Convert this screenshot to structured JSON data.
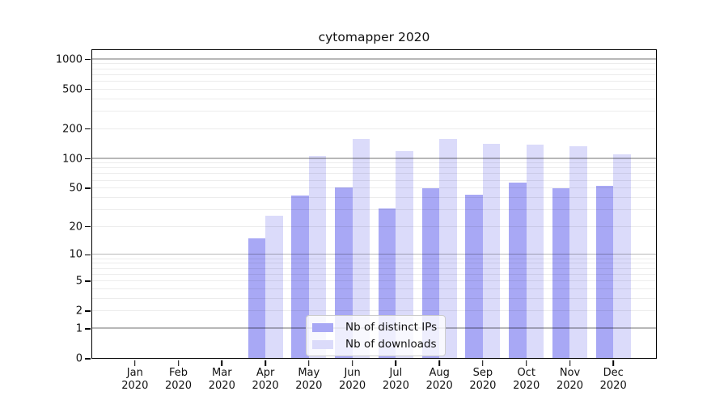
{
  "chart_data": {
    "type": "bar",
    "title": "cytomapper 2020",
    "x_categories": [
      "Jan",
      "Feb",
      "Mar",
      "Apr",
      "May",
      "Jun",
      "Jul",
      "Aug",
      "Sep",
      "Oct",
      "Nov",
      "Dec"
    ],
    "x_year_label": "2020",
    "series": [
      {
        "name": "Nb of distinct IPs",
        "color": "#a8a8f5",
        "values": [
          0,
          0,
          0,
          15,
          42,
          51,
          31,
          50,
          43,
          57,
          50,
          53
        ]
      },
      {
        "name": "Nb of downloads",
        "color": "#dbdbfa",
        "values": [
          0,
          0,
          0,
          26,
          106,
          160,
          119,
          160,
          142,
          139,
          135,
          110
        ]
      }
    ],
    "y_axis": {
      "scale": "log1p",
      "tick_values": [
        0,
        1,
        2,
        5,
        10,
        20,
        50,
        100,
        200,
        500,
        1000
      ],
      "tick_labels": [
        "0",
        "1",
        "2",
        "5",
        "10",
        "20",
        "50",
        "100",
        "200",
        "500",
        "1000"
      ],
      "major_gridline_values": [
        1,
        10,
        100,
        1000
      ],
      "minor_gridline_values": [
        3,
        4,
        6,
        7,
        8,
        9,
        30,
        40,
        60,
        70,
        80,
        90,
        300,
        400,
        600,
        700,
        800,
        900
      ]
    },
    "legend": {
      "entries": [
        "Nb of distinct IPs",
        "Nb of downloads"
      ],
      "position": "lower center"
    },
    "grid": true,
    "background_color": "#ffffff",
    "axis_color": "#000000"
  }
}
